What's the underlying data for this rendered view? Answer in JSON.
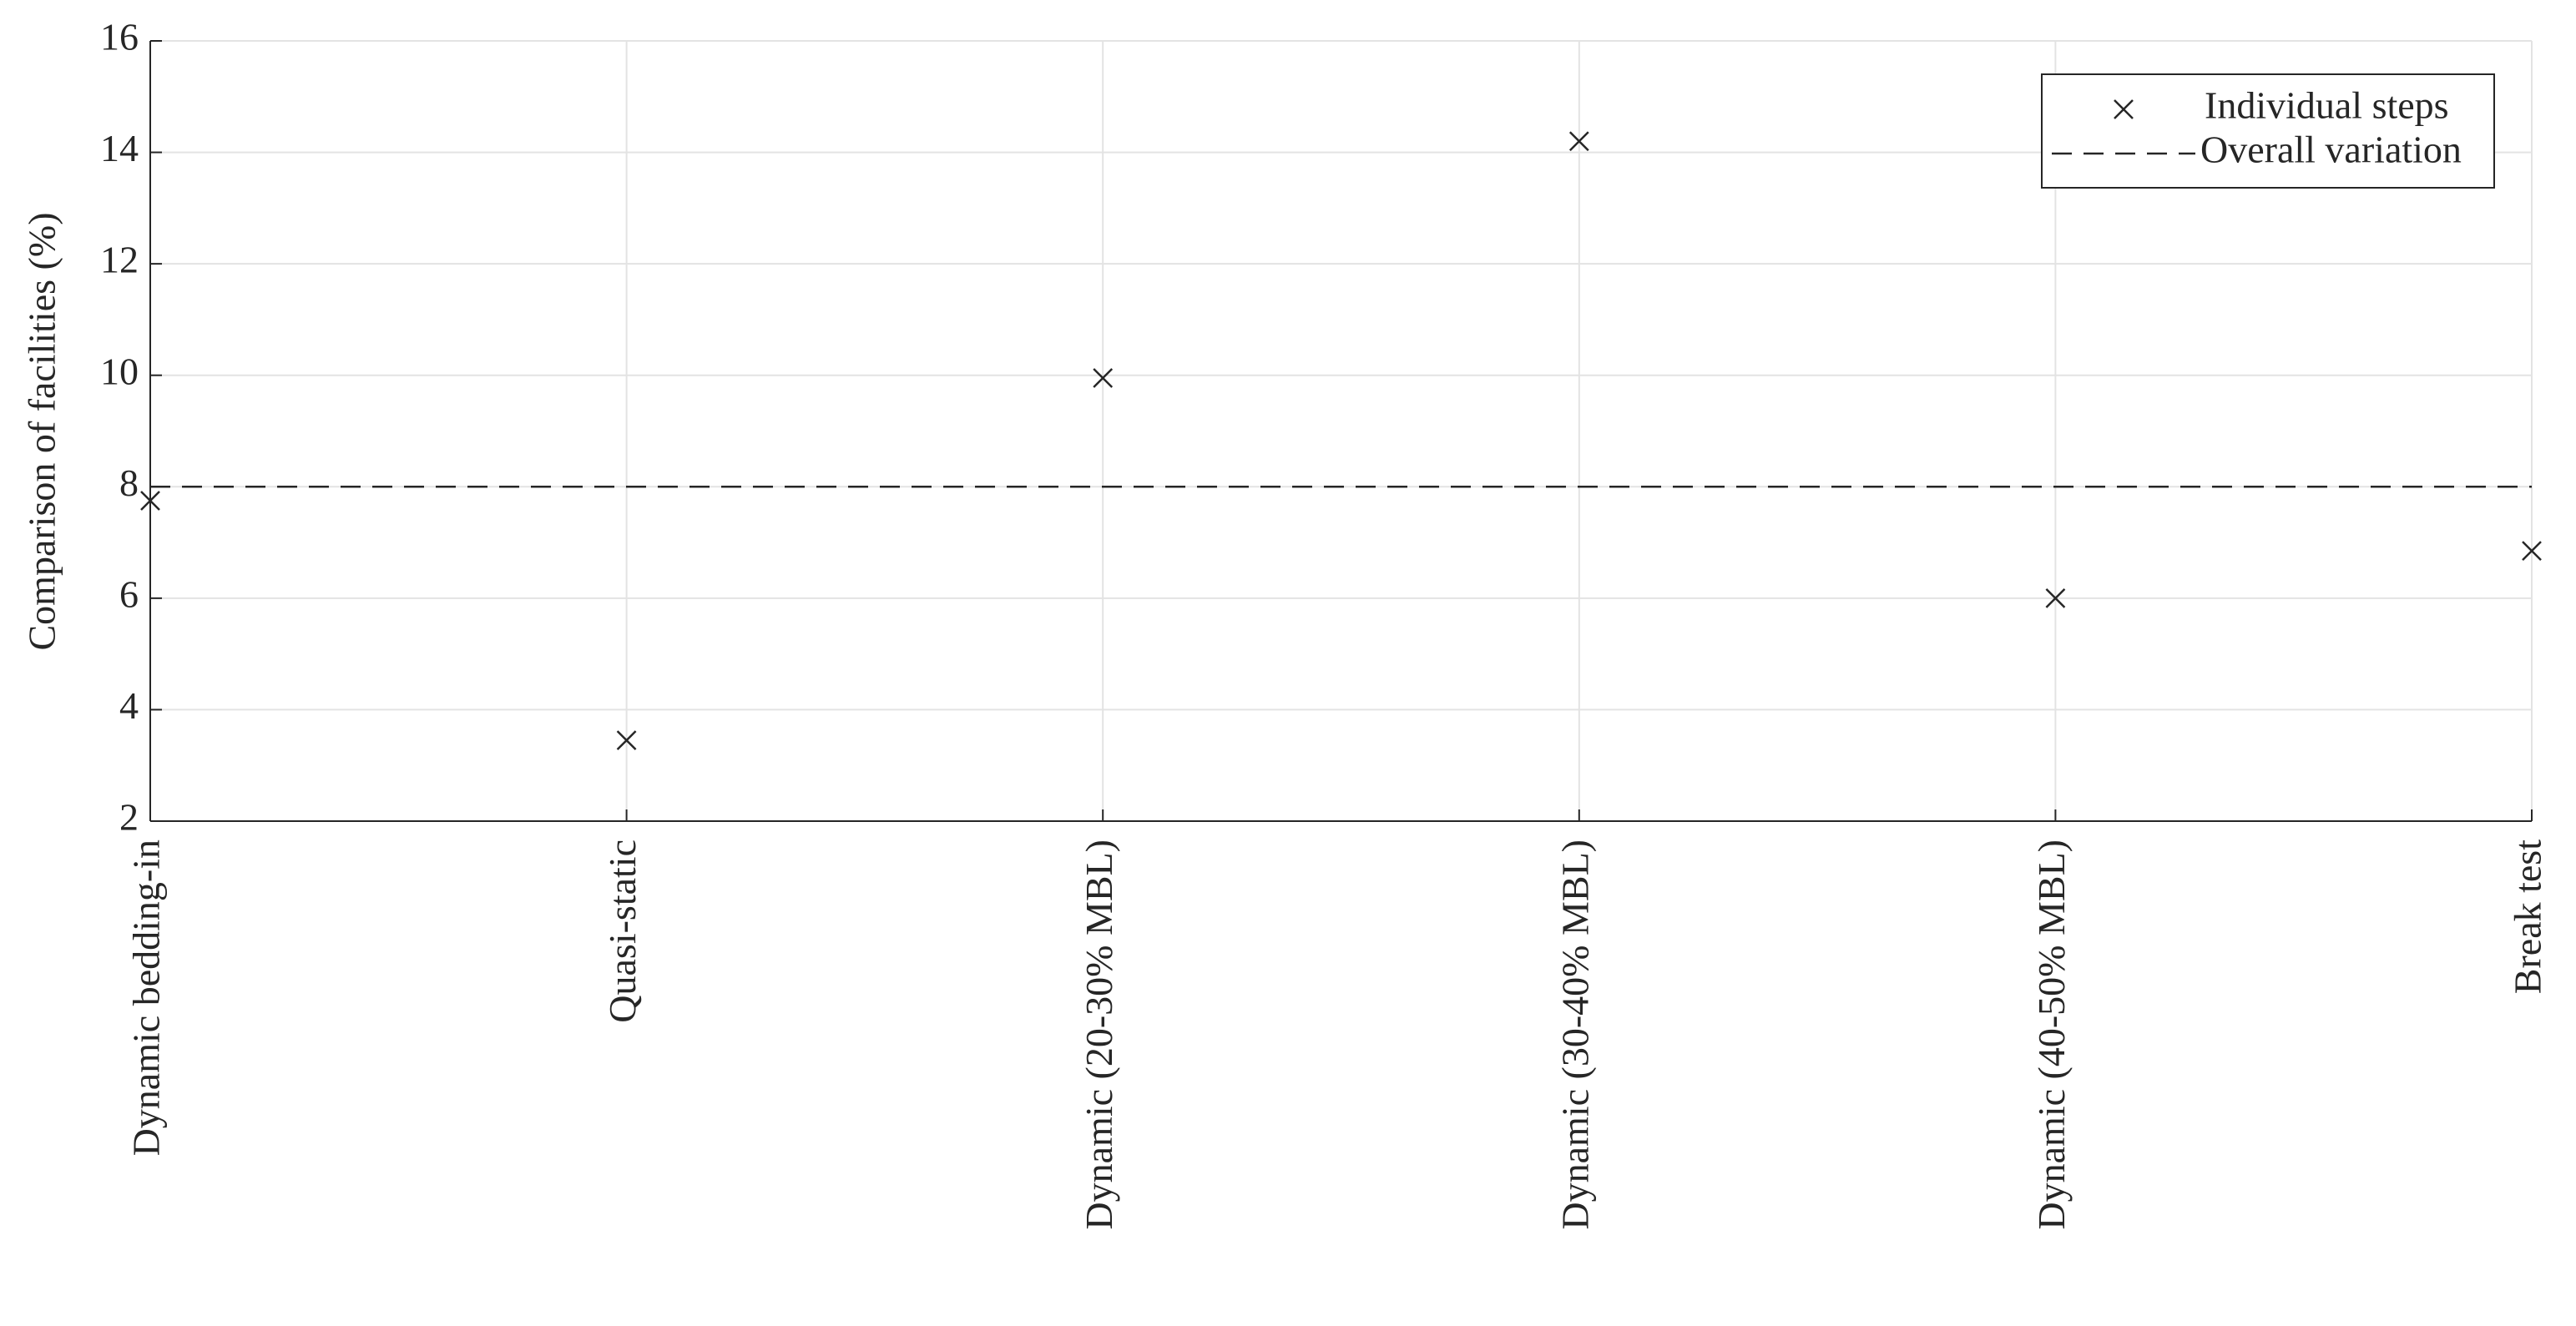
{
  "chart_data": {
    "type": "scatter",
    "ylabel": "Comparison of facilities (%)",
    "categories": [
      "Dynamic bedding-in",
      "Quasi-static",
      "Dynamic (20-30% MBL)",
      "Dynamic (30-40% MBL)",
      "Dynamic (40-50% MBL)",
      "Break test"
    ],
    "series": [
      {
        "name": "Individual steps",
        "color": "#262626",
        "marker": "x",
        "values": [
          7.75,
          3.45,
          9.95,
          14.2,
          6.0,
          6.85
        ]
      }
    ],
    "hlines": [
      {
        "name": "Overall variation",
        "color": "#262626",
        "style": "dashed",
        "value": 8
      }
    ],
    "ylim": [
      2,
      16
    ],
    "yticks": [
      2,
      4,
      6,
      8,
      10,
      12,
      14,
      16
    ],
    "grid": true,
    "legend": "upper right"
  }
}
